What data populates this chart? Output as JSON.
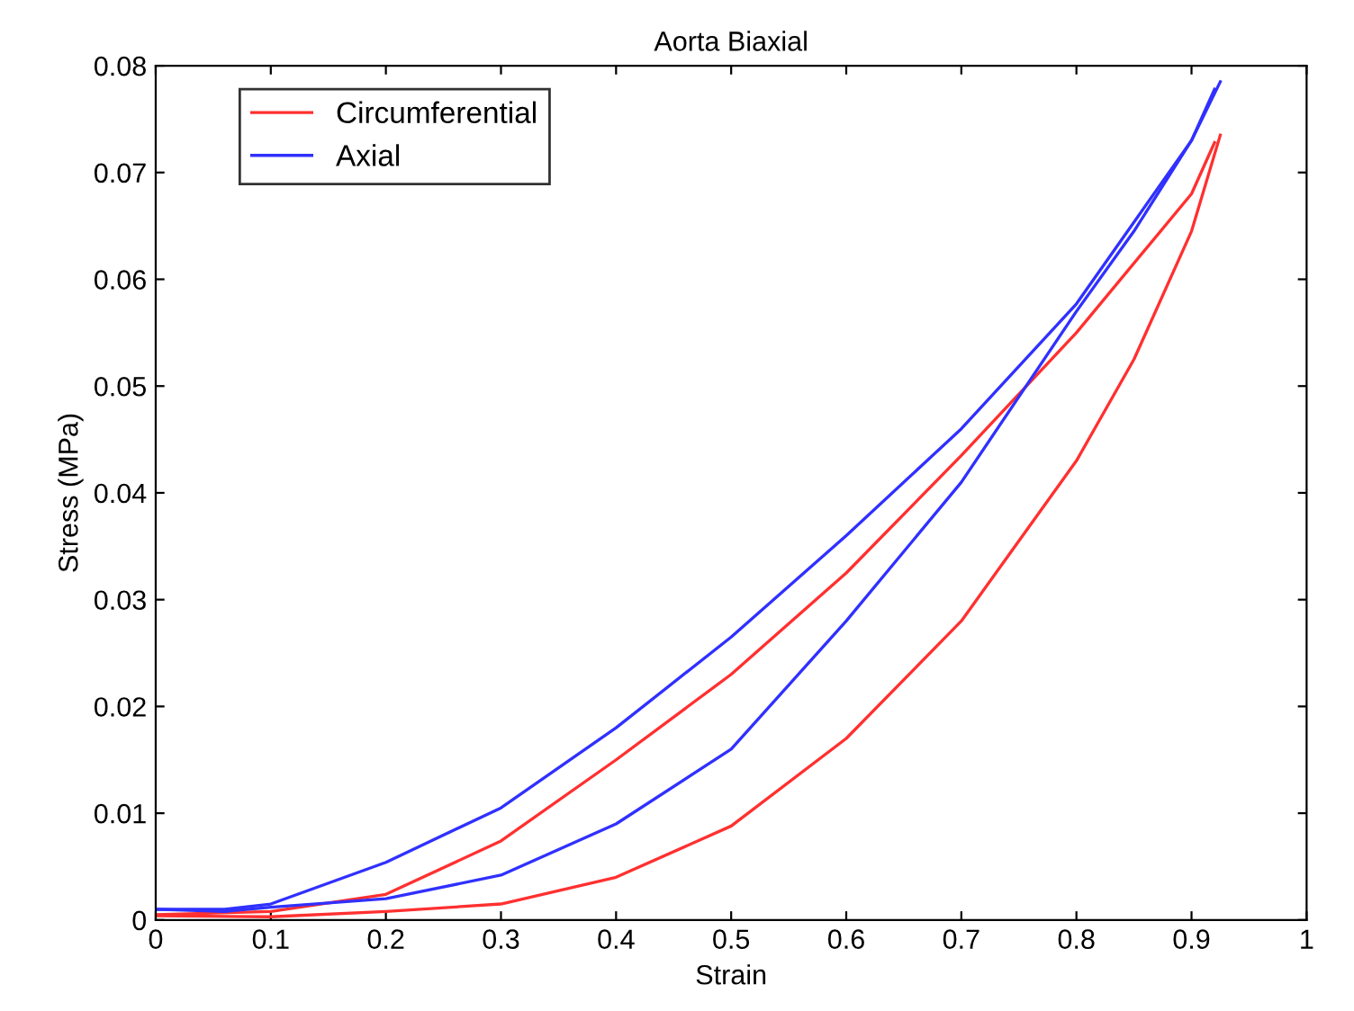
{
  "chart_data": {
    "type": "line",
    "title": "Aorta Biaxial",
    "xlabel": "Strain",
    "ylabel": "Stress (MPa)",
    "xlim": [
      0,
      1
    ],
    "ylim": [
      0,
      0.08
    ],
    "xticks": [
      0,
      0.1,
      0.2,
      0.3,
      0.4,
      0.5,
      0.6,
      0.7,
      0.8,
      0.9,
      1
    ],
    "yticks": [
      0,
      0.01,
      0.02,
      0.03,
      0.04,
      0.05,
      0.06,
      0.07,
      0.08
    ],
    "grid": false,
    "legend": "top left",
    "marker": "none",
    "line_style": "solid",
    "series": [
      {
        "name": "Circumferential",
        "color": "#ff3030",
        "x": [
          0,
          0.1,
          0.2,
          0.3,
          0.4,
          0.5,
          0.6,
          0.7,
          0.8,
          0.85,
          0.9,
          0.925
        ],
        "values": [
          0.0004,
          0.0003,
          0.0008,
          0.0015,
          0.004,
          0.0088,
          0.017,
          0.028,
          0.043,
          0.0525,
          0.0645,
          0.0735
        ]
      },
      {
        "color": "#ff3030",
        "x": [
          0,
          0.1,
          0.2,
          0.3,
          0.4,
          0.5,
          0.6,
          0.7,
          0.8,
          0.9,
          0.92
        ],
        "values": [
          0.0005,
          0.0008,
          0.0024,
          0.0074,
          0.015,
          0.023,
          0.0325,
          0.0435,
          0.055,
          0.068,
          0.0728
        ]
      },
      {
        "name": "Axial",
        "color": "#3030ff",
        "x": [
          0,
          0.06,
          0.1,
          0.2,
          0.3,
          0.4,
          0.5,
          0.6,
          0.7,
          0.8,
          0.85,
          0.9,
          0.925
        ],
        "values": [
          0.001,
          0.0008,
          0.0012,
          0.002,
          0.0042,
          0.009,
          0.016,
          0.028,
          0.041,
          0.057,
          0.0645,
          0.073,
          0.0785
        ]
      },
      {
        "color": "#3030ff",
        "x": [
          0,
          0.06,
          0.1,
          0.2,
          0.3,
          0.4,
          0.5,
          0.6,
          0.7,
          0.8,
          0.9,
          0.92
        ],
        "values": [
          0.001,
          0.001,
          0.0015,
          0.0054,
          0.0105,
          0.018,
          0.0265,
          0.036,
          0.046,
          0.0577,
          0.073,
          0.0778
        ]
      }
    ]
  }
}
